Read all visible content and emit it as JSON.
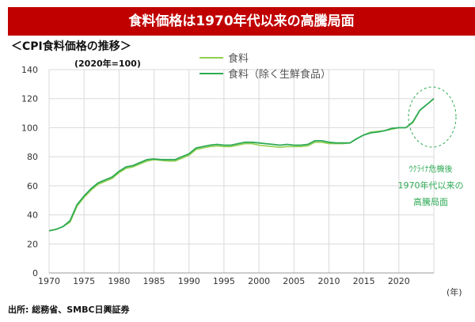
{
  "header": {
    "title": "食料価格は1970年代以来の高騰局面",
    "subtitle": "＜CPI食料価格の推移＞"
  },
  "source": "出所: 総務省、SMBC日興証券",
  "colors": {
    "banner": "#c00000",
    "food": "#92d050",
    "food_ex_fresh": "#2eaa55",
    "annotation": "#2eaa55"
  },
  "chart_data": {
    "type": "line",
    "unit_note": "(2020年=100)",
    "xlabel": "(年)",
    "xlim": [
      1970,
      2025
    ],
    "ylim": [
      0,
      140
    ],
    "xticks": [
      "1970",
      "1975",
      "1980",
      "1985",
      "1990",
      "1995",
      "2000",
      "2005",
      "2010",
      "2015",
      "2020"
    ],
    "yticks": [
      "0",
      "20",
      "40",
      "60",
      "80",
      "100",
      "120",
      "140"
    ],
    "grid": true,
    "legend": "top-center",
    "x": [
      1970,
      1971,
      1972,
      1973,
      1974,
      1975,
      1976,
      1977,
      1978,
      1979,
      1980,
      1981,
      1982,
      1983,
      1984,
      1985,
      1986,
      1987,
      1988,
      1989,
      1990,
      1991,
      1992,
      1993,
      1994,
      1995,
      1996,
      1997,
      1998,
      1999,
      2000,
      2001,
      2002,
      2003,
      2004,
      2005,
      2006,
      2007,
      2008,
      2009,
      2010,
      2011,
      2012,
      2013,
      2014,
      2015,
      2016,
      2017,
      2018,
      2019,
      2020,
      2021,
      2022,
      2023,
      2024,
      2025
    ],
    "series": [
      {
        "name": "食料",
        "values": [
          29,
          30,
          32,
          35,
          46,
          52,
          57,
          61,
          63,
          65,
          69,
          72,
          73,
          75,
          77,
          78,
          77.5,
          77,
          77,
          79,
          81,
          85,
          86,
          87,
          87.5,
          87,
          87,
          88,
          89,
          89,
          88,
          87.5,
          87,
          86.5,
          87,
          87,
          87,
          87.5,
          90,
          90,
          89,
          89,
          89,
          89.5,
          92.5,
          95,
          97,
          97.5,
          98,
          99,
          100,
          100,
          103.5,
          112,
          116,
          120
        ]
      },
      {
        "name": "食料（除く生鮮食品）",
        "values": [
          29,
          30,
          32,
          36,
          47,
          53,
          58,
          62,
          64,
          66,
          70,
          73,
          74,
          76,
          78,
          78.5,
          78,
          78,
          78,
          80,
          82,
          86,
          87,
          88,
          88.5,
          88,
          88,
          89,
          90,
          90,
          89.5,
          89,
          88.5,
          88,
          88.5,
          88,
          88,
          88.5,
          91,
          91,
          90,
          89.5,
          89.5,
          89.5,
          92.5,
          95,
          96.5,
          97,
          98,
          99.5,
          100,
          100,
          104,
          112,
          116,
          120
        ]
      }
    ],
    "annotation": [
      "ｳｸﾗｲﾅ危機後",
      "1970年代以来の",
      "高騰局面"
    ]
  }
}
